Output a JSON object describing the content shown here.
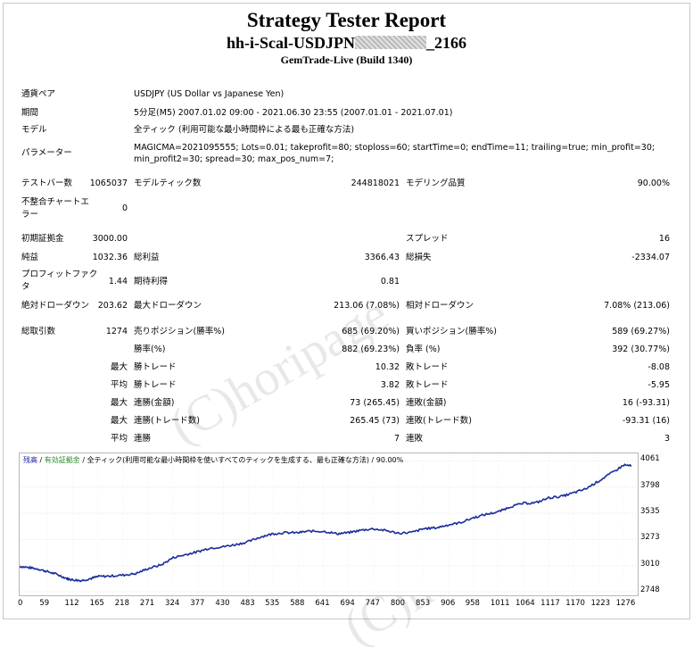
{
  "header": {
    "title": "Strategy Tester Report",
    "ea_name_prefix": "hh-i-Scal-USDJPN",
    "ea_name_suffix": "_2166",
    "server": "GemTrade-Live (Build 1340)"
  },
  "watermark": "(C)horipage",
  "info": [
    {
      "label": "通貨ペア",
      "value": "USDJPY (US Dollar vs Japanese Yen)"
    },
    {
      "label": "期間",
      "value": "5分足(M5) 2007.01.02 09:00 - 2021.06.30 23:55 (2007.01.01 - 2021.07.01)"
    },
    {
      "label": "モデル",
      "value": "全ティック (利用可能な最小時間枠による最も正確な方法)"
    },
    {
      "label": "パラメーター",
      "value_line1": "MAGICMA=2021095555; Lots=0.01; takeprofit=80; stoploss=60; startTime=0; endTime=11; trailing=true; min_profit=30;",
      "value_line2": "min_profit2=30; spread=30; max_pos_num=7;"
    }
  ],
  "stats": {
    "bars_label": "テストバー数",
    "bars_value": "1065037",
    "ticks_label": "モデルティック数",
    "ticks_value": "244818021",
    "quality_label": "モデリング品質",
    "quality_value": "90.00%",
    "mismatch_label_l1": "不整合チャートエ",
    "mismatch_label_l2": "ラー",
    "mismatch_value": "0",
    "deposit_label": "初期証拠金",
    "deposit_value": "3000.00",
    "spread_label": "スプレッド",
    "spread_value": "16",
    "net_label": "純益",
    "net_value": "1032.36",
    "gross_profit_label": "総利益",
    "gross_profit_value": "3366.43",
    "gross_loss_label": "総損失",
    "gross_loss_value": "-2334.07",
    "pf_label_l1": "プロフィットファク",
    "pf_label_l2": "タ",
    "pf_value": "1.44",
    "expected_label": "期待利得",
    "expected_value": "0.81",
    "abs_dd_label": "絶対ドローダウン",
    "abs_dd_value": "203.62",
    "max_dd_label": "最大ドローダウン",
    "max_dd_value": "213.06 (7.08%)",
    "rel_dd_label": "相対ドローダウン",
    "rel_dd_value": "7.08% (213.06)",
    "total_trades_label": "総取引数",
    "total_trades_value": "1274",
    "short_label": "売りポジション(勝率%)",
    "short_value": "685 (69.20%)",
    "long_label": "買いポジション(勝率%)",
    "long_value": "589 (69.27%)",
    "win_rate_label": "勝率(%)",
    "win_rate_value": "882 (69.23%)",
    "loss_rate_label": "負率 (%)",
    "loss_rate_value": "392 (30.77%)",
    "max_label": "最大",
    "avg_label": "平均",
    "largest_win_label": "勝トレード",
    "largest_win_value": "10.32",
    "largest_loss_label": "敗トレード",
    "largest_loss_value": "-8.08",
    "avg_win_label": "勝トレード",
    "avg_win_value": "3.82",
    "avg_loss_label": "敗トレード",
    "avg_loss_value": "-5.95",
    "max_consec_win_label": "連勝(金額)",
    "max_consec_win_value": "73 (265.45)",
    "max_consec_loss_label": "連敗(金額)",
    "max_consec_loss_value": "16 (-93.31)",
    "max_consec_profit_label": "連勝(トレード数)",
    "max_consec_profit_value": "265.45 (73)",
    "max_consec_lossamt_label": "連敗(トレード数)",
    "max_consec_lossamt_value": "-93.31 (16)",
    "avg_consec_win_label": "連勝",
    "avg_consec_win_value": "7",
    "avg_consec_loss_label": "連敗",
    "avg_consec_loss_value": "3"
  },
  "chart_legend": {
    "balance": "残高",
    "sep1": " / ",
    "equity": "有効証拠金",
    "sep2": " / ",
    "model": "全ティック(利用可能な最小時間枠を使いすべてのティックを生成する、最も正確な方法) / 90.00%"
  },
  "colors": {
    "balance_line": "#1c2f9c",
    "balance_legend": "#1a1aa6",
    "equity_legend": "#2e8b2e"
  },
  "chart_data": {
    "type": "line",
    "title": "",
    "x_ticks": [
      "0",
      "59",
      "112",
      "165",
      "218",
      "271",
      "324",
      "377",
      "430",
      "483",
      "535",
      "588",
      "641",
      "694",
      "747",
      "800",
      "853",
      "906",
      "958",
      "1011",
      "1064",
      "1117",
      "1170",
      "1223",
      "1276"
    ],
    "y_ticks": [
      "2748",
      "3010",
      "3273",
      "3535",
      "3798",
      "4061"
    ],
    "xlim": [
      0,
      1305
    ],
    "ylim": [
      2748,
      4100
    ],
    "series": [
      {
        "name": "残高",
        "x": [
          0,
          20,
          40,
          59,
          80,
          100,
          112,
          130,
          150,
          165,
          190,
          218,
          245,
          271,
          300,
          324,
          350,
          377,
          400,
          430,
          455,
          483,
          510,
          535,
          560,
          588,
          610,
          641,
          670,
          694,
          720,
          747,
          775,
          800,
          830,
          853,
          880,
          906,
          930,
          958,
          985,
          1011,
          1035,
          1064,
          1090,
          1117,
          1145,
          1170,
          1195,
          1223,
          1250,
          1276,
          1292
        ],
        "y": [
          3003,
          2990,
          2975,
          2950,
          2920,
          2880,
          2868,
          2860,
          2880,
          2900,
          2905,
          2915,
          2930,
          2980,
          3020,
          3090,
          3120,
          3150,
          3185,
          3200,
          3220,
          3250,
          3300,
          3330,
          3340,
          3340,
          3355,
          3355,
          3330,
          3340,
          3365,
          3380,
          3360,
          3335,
          3345,
          3380,
          3390,
          3420,
          3440,
          3490,
          3525,
          3550,
          3600,
          3635,
          3640,
          3690,
          3705,
          3740,
          3780,
          3860,
          3940,
          4020,
          4010
        ]
      }
    ]
  }
}
